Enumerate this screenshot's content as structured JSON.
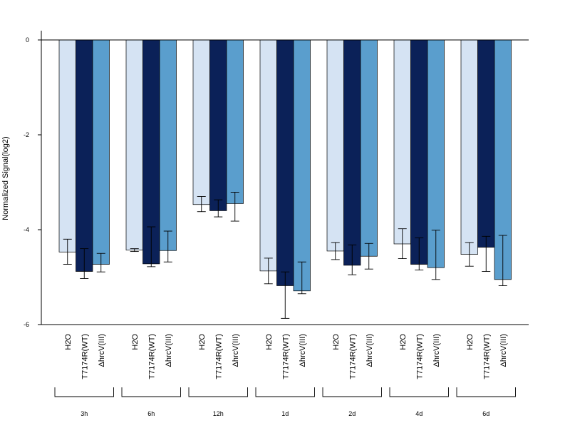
{
  "chart_data": {
    "type": "bar",
    "ylabel": "Normalized Signal(log2)",
    "xlabel": "",
    "ylim": [
      -6,
      0
    ],
    "yticks": [
      "0",
      "-2",
      "-4",
      "-6"
    ],
    "group_labels": [
      "3h",
      "6h",
      "12h",
      "1d",
      "2d",
      "4d",
      "6d"
    ],
    "bar_labels": [
      "H2O",
      "T7174R(WT)",
      "ΔhrcV(III)"
    ],
    "series": [
      {
        "color": "#d5e3f3",
        "values": [
          -4.47,
          -4.43,
          -3.47,
          -4.87,
          -4.45,
          -4.3,
          -4.52
        ],
        "err_low": [
          -4.73,
          -4.46,
          -3.62,
          -5.14,
          -4.63,
          -4.61,
          -4.77
        ],
        "err_high": [
          -4.2,
          -4.4,
          -3.3,
          -4.6,
          -4.27,
          -3.98,
          -4.27
        ]
      },
      {
        "color": "#0b2158",
        "values": [
          -4.88,
          -4.72,
          -3.6,
          -5.18,
          -4.75,
          -4.73,
          -4.37
        ],
        "err_low": [
          -5.03,
          -4.78,
          -3.73,
          -5.87,
          -4.95,
          -4.85,
          -4.88
        ],
        "err_high": [
          -4.4,
          -3.94,
          -3.37,
          -4.89,
          -4.32,
          -4.17,
          -4.14
        ]
      },
      {
        "color": "#5a9ecd",
        "values": [
          -4.73,
          -4.44,
          -3.45,
          -5.29,
          -4.56,
          -4.8,
          -5.05
        ],
        "err_low": [
          -4.89,
          -4.68,
          -3.82,
          -5.35,
          -4.83,
          -5.05,
          -5.18
        ],
        "err_high": [
          -4.5,
          -4.03,
          -3.21,
          -4.68,
          -4.29,
          -4.01,
          -4.12
        ]
      }
    ]
  }
}
